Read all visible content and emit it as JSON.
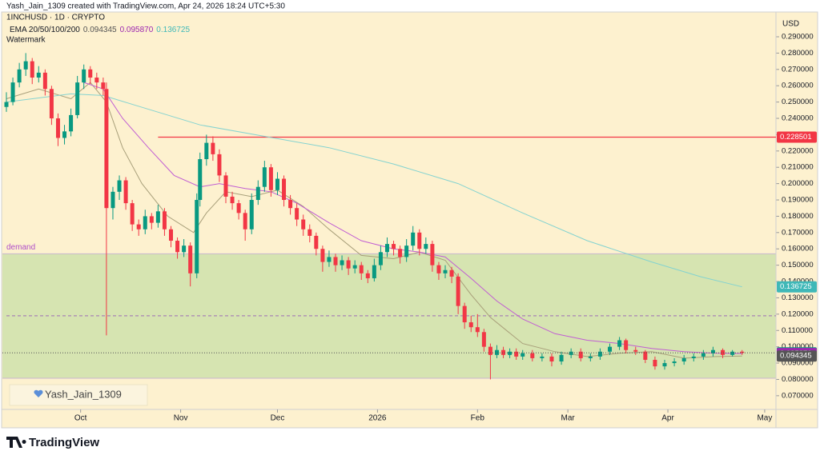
{
  "chart_data": {
    "type": "candlestick",
    "header": "Yash_Jain_1309 created with TradingView.com, Apr 24, 2026 18:24 UTC+5:30",
    "symbol": "1INCHUSD · 1D · CRYPTO",
    "watermark_title": "Watermark",
    "watermark_text": "Yash_Jain_1309",
    "brand": "TradingView",
    "currency": "USD",
    "up_color": "#089981",
    "down_color": "#f23645",
    "ylim": [
      0.0616,
      0.3047
    ],
    "yticks": [
      {
        "value": 0.07,
        "label": "0.070000"
      },
      {
        "value": 0.08,
        "label": "0.080000"
      },
      {
        "value": 0.09,
        "label": "0.090000"
      },
      {
        "value": 0.1,
        "label": "0.100000"
      },
      {
        "value": 0.11,
        "label": "0.110000"
      },
      {
        "value": 0.12,
        "label": "0.120000"
      },
      {
        "value": 0.13,
        "label": "0.130000"
      },
      {
        "value": 0.14,
        "label": "0.140000"
      },
      {
        "value": 0.15,
        "label": "0.150000"
      },
      {
        "value": 0.16,
        "label": "0.160000"
      },
      {
        "value": 0.17,
        "label": "0.170000"
      },
      {
        "value": 0.18,
        "label": "0.180000"
      },
      {
        "value": 0.19,
        "label": "0.190000"
      },
      {
        "value": 0.2,
        "label": "0.200000"
      },
      {
        "value": 0.21,
        "label": "0.210000"
      },
      {
        "value": 0.22,
        "label": "0.220000"
      },
      {
        "value": 0.23,
        "label": "0.230000"
      },
      {
        "value": 0.24,
        "label": "0.240000"
      },
      {
        "value": 0.25,
        "label": "0.250000"
      },
      {
        "value": 0.26,
        "label": "0.260000"
      },
      {
        "value": 0.27,
        "label": "0.270000"
      },
      {
        "value": 0.28,
        "label": "0.280000"
      },
      {
        "value": 0.29,
        "label": "0.290000"
      }
    ],
    "xlim": [
      0,
      237.5
    ],
    "xticks": [
      {
        "value": 23,
        "label": "Oct"
      },
      {
        "value": 54,
        "label": "Nov"
      },
      {
        "value": 84,
        "label": "Dec"
      },
      {
        "value": 115,
        "label": "2026"
      },
      {
        "value": 146,
        "label": "Feb"
      },
      {
        "value": 174,
        "label": "Mar"
      },
      {
        "value": 205,
        "label": "Apr"
      },
      {
        "value": 235,
        "label": "May"
      }
    ],
    "candles": [
      {
        "x": 0,
        "open": 0.247,
        "high": 0.256,
        "low": 0.244,
        "close": 0.25
      },
      {
        "x": 2,
        "open": 0.25,
        "high": 0.265,
        "low": 0.248,
        "close": 0.262
      },
      {
        "x": 4,
        "open": 0.262,
        "high": 0.274,
        "low": 0.259,
        "close": 0.27
      },
      {
        "x": 6,
        "open": 0.27,
        "high": 0.28,
        "low": 0.266,
        "close": 0.275
      },
      {
        "x": 8,
        "open": 0.275,
        "high": 0.277,
        "low": 0.261,
        "close": 0.265
      },
      {
        "x": 10,
        "open": 0.265,
        "high": 0.272,
        "low": 0.262,
        "close": 0.268
      },
      {
        "x": 12,
        "open": 0.268,
        "high": 0.27,
        "low": 0.254,
        "close": 0.258
      },
      {
        "x": 14,
        "open": 0.258,
        "high": 0.26,
        "low": 0.236,
        "close": 0.24
      },
      {
        "x": 16,
        "open": 0.24,
        "high": 0.243,
        "low": 0.223,
        "close": 0.228
      },
      {
        "x": 18,
        "open": 0.228,
        "high": 0.236,
        "low": 0.224,
        "close": 0.232
      },
      {
        "x": 20,
        "open": 0.232,
        "high": 0.246,
        "low": 0.229,
        "close": 0.242
      },
      {
        "x": 22,
        "open": 0.242,
        "high": 0.266,
        "low": 0.24,
        "close": 0.262
      },
      {
        "x": 24,
        "open": 0.262,
        "high": 0.273,
        "low": 0.258,
        "close": 0.27
      },
      {
        "x": 26,
        "open": 0.27,
        "high": 0.272,
        "low": 0.261,
        "close": 0.265
      },
      {
        "x": 28,
        "open": 0.265,
        "high": 0.268,
        "low": 0.258,
        "close": 0.262
      },
      {
        "x": 30,
        "open": 0.262,
        "high": 0.265,
        "low": 0.254,
        "close": 0.258
      },
      {
        "x": 31,
        "open": 0.258,
        "high": 0.262,
        "low": 0.107,
        "close": 0.185
      },
      {
        "x": 33,
        "open": 0.185,
        "high": 0.198,
        "low": 0.178,
        "close": 0.195
      },
      {
        "x": 35,
        "open": 0.195,
        "high": 0.205,
        "low": 0.19,
        "close": 0.202
      },
      {
        "x": 37,
        "open": 0.202,
        "high": 0.204,
        "low": 0.184,
        "close": 0.188
      },
      {
        "x": 39,
        "open": 0.188,
        "high": 0.19,
        "low": 0.171,
        "close": 0.175
      },
      {
        "x": 41,
        "open": 0.175,
        "high": 0.178,
        "low": 0.168,
        "close": 0.172
      },
      {
        "x": 43,
        "open": 0.172,
        "high": 0.184,
        "low": 0.169,
        "close": 0.18
      },
      {
        "x": 45,
        "open": 0.18,
        "high": 0.182,
        "low": 0.172,
        "close": 0.176
      },
      {
        "x": 47,
        "open": 0.176,
        "high": 0.187,
        "low": 0.173,
        "close": 0.183
      },
      {
        "x": 49,
        "open": 0.183,
        "high": 0.185,
        "low": 0.168,
        "close": 0.172
      },
      {
        "x": 51,
        "open": 0.172,
        "high": 0.174,
        "low": 0.161,
        "close": 0.165
      },
      {
        "x": 53,
        "open": 0.165,
        "high": 0.167,
        "low": 0.154,
        "close": 0.158
      },
      {
        "x": 55,
        "open": 0.158,
        "high": 0.166,
        "low": 0.155,
        "close": 0.162
      },
      {
        "x": 57,
        "open": 0.162,
        "high": 0.164,
        "low": 0.137,
        "close": 0.145
      },
      {
        "x": 59,
        "open": 0.145,
        "high": 0.194,
        "low": 0.142,
        "close": 0.19
      },
      {
        "x": 60,
        "open": 0.19,
        "high": 0.219,
        "low": 0.186,
        "close": 0.215
      },
      {
        "x": 62,
        "open": 0.215,
        "high": 0.23,
        "low": 0.211,
        "close": 0.225
      },
      {
        "x": 64,
        "open": 0.225,
        "high": 0.229,
        "low": 0.214,
        "close": 0.218
      },
      {
        "x": 66,
        "open": 0.218,
        "high": 0.221,
        "low": 0.201,
        "close": 0.205
      },
      {
        "x": 68,
        "open": 0.205,
        "high": 0.207,
        "low": 0.188,
        "close": 0.192
      },
      {
        "x": 70,
        "open": 0.192,
        "high": 0.195,
        "low": 0.184,
        "close": 0.188
      },
      {
        "x": 72,
        "open": 0.188,
        "high": 0.19,
        "low": 0.178,
        "close": 0.182
      },
      {
        "x": 74,
        "open": 0.182,
        "high": 0.184,
        "low": 0.165,
        "close": 0.172
      },
      {
        "x": 76,
        "open": 0.172,
        "high": 0.194,
        "low": 0.169,
        "close": 0.19
      },
      {
        "x": 78,
        "open": 0.19,
        "high": 0.202,
        "low": 0.187,
        "close": 0.198
      },
      {
        "x": 80,
        "open": 0.198,
        "high": 0.214,
        "low": 0.195,
        "close": 0.21
      },
      {
        "x": 82,
        "open": 0.21,
        "high": 0.212,
        "low": 0.192,
        "close": 0.196
      },
      {
        "x": 84,
        "open": 0.196,
        "high": 0.207,
        "low": 0.193,
        "close": 0.203
      },
      {
        "x": 86,
        "open": 0.203,
        "high": 0.205,
        "low": 0.186,
        "close": 0.19
      },
      {
        "x": 88,
        "open": 0.19,
        "high": 0.193,
        "low": 0.181,
        "close": 0.185
      },
      {
        "x": 90,
        "open": 0.185,
        "high": 0.188,
        "low": 0.174,
        "close": 0.178
      },
      {
        "x": 92,
        "open": 0.178,
        "high": 0.181,
        "low": 0.168,
        "close": 0.172
      },
      {
        "x": 94,
        "open": 0.172,
        "high": 0.175,
        "low": 0.164,
        "close": 0.168
      },
      {
        "x": 96,
        "open": 0.168,
        "high": 0.17,
        "low": 0.156,
        "close": 0.16
      },
      {
        "x": 98,
        "open": 0.16,
        "high": 0.162,
        "low": 0.146,
        "close": 0.152
      },
      {
        "x": 100,
        "open": 0.152,
        "high": 0.159,
        "low": 0.149,
        "close": 0.155
      },
      {
        "x": 102,
        "open": 0.155,
        "high": 0.157,
        "low": 0.146,
        "close": 0.15
      },
      {
        "x": 104,
        "open": 0.15,
        "high": 0.156,
        "low": 0.147,
        "close": 0.153
      },
      {
        "x": 106,
        "open": 0.153,
        "high": 0.155,
        "low": 0.144,
        "close": 0.148
      },
      {
        "x": 108,
        "open": 0.148,
        "high": 0.153,
        "low": 0.145,
        "close": 0.15
      },
      {
        "x": 110,
        "open": 0.15,
        "high": 0.152,
        "low": 0.141,
        "close": 0.145
      },
      {
        "x": 112,
        "open": 0.145,
        "high": 0.147,
        "low": 0.139,
        "close": 0.142
      },
      {
        "x": 114,
        "open": 0.142,
        "high": 0.154,
        "low": 0.14,
        "close": 0.15
      },
      {
        "x": 116,
        "open": 0.15,
        "high": 0.162,
        "low": 0.147,
        "close": 0.158
      },
      {
        "x": 118,
        "open": 0.158,
        "high": 0.167,
        "low": 0.155,
        "close": 0.163
      },
      {
        "x": 120,
        "open": 0.163,
        "high": 0.165,
        "low": 0.156,
        "close": 0.16
      },
      {
        "x": 122,
        "open": 0.16,
        "high": 0.162,
        "low": 0.151,
        "close": 0.155
      },
      {
        "x": 124,
        "open": 0.155,
        "high": 0.166,
        "low": 0.152,
        "close": 0.162
      },
      {
        "x": 126,
        "open": 0.162,
        "high": 0.174,
        "low": 0.159,
        "close": 0.17
      },
      {
        "x": 128,
        "open": 0.17,
        "high": 0.172,
        "low": 0.156,
        "close": 0.16
      },
      {
        "x": 130,
        "open": 0.16,
        "high": 0.167,
        "low": 0.157,
        "close": 0.163
      },
      {
        "x": 132,
        "open": 0.163,
        "high": 0.165,
        "low": 0.146,
        "close": 0.15
      },
      {
        "x": 134,
        "open": 0.15,
        "high": 0.152,
        "low": 0.141,
        "close": 0.145
      },
      {
        "x": 136,
        "open": 0.145,
        "high": 0.15,
        "low": 0.142,
        "close": 0.147
      },
      {
        "x": 138,
        "open": 0.147,
        "high": 0.149,
        "low": 0.139,
        "close": 0.143
      },
      {
        "x": 140,
        "open": 0.143,
        "high": 0.145,
        "low": 0.12,
        "close": 0.125
      },
      {
        "x": 142,
        "open": 0.125,
        "high": 0.127,
        "low": 0.111,
        "close": 0.115
      },
      {
        "x": 144,
        "open": 0.115,
        "high": 0.119,
        "low": 0.109,
        "close": 0.112
      },
      {
        "x": 146,
        "open": 0.112,
        "high": 0.12,
        "low": 0.106,
        "close": 0.109
      },
      {
        "x": 148,
        "open": 0.109,
        "high": 0.111,
        "low": 0.097,
        "close": 0.1
      },
      {
        "x": 150,
        "open": 0.1,
        "high": 0.102,
        "low": 0.08,
        "close": 0.095
      },
      {
        "x": 152,
        "open": 0.095,
        "high": 0.101,
        "low": 0.093,
        "close": 0.098
      },
      {
        "x": 154,
        "open": 0.098,
        "high": 0.1,
        "low": 0.093,
        "close": 0.095
      },
      {
        "x": 156,
        "open": 0.095,
        "high": 0.099,
        "low": 0.093,
        "close": 0.097
      },
      {
        "x": 158,
        "open": 0.097,
        "high": 0.099,
        "low": 0.092,
        "close": 0.094
      },
      {
        "x": 160,
        "open": 0.094,
        "high": 0.098,
        "low": 0.092,
        "close": 0.096
      },
      {
        "x": 163,
        "open": 0.096,
        "high": 0.098,
        "low": 0.091,
        "close": 0.093
      },
      {
        "x": 166,
        "open": 0.093,
        "high": 0.096,
        "low": 0.091,
        "close": 0.094
      },
      {
        "x": 169,
        "open": 0.094,
        "high": 0.096,
        "low": 0.088,
        "close": 0.091
      },
      {
        "x": 172,
        "open": 0.091,
        "high": 0.097,
        "low": 0.089,
        "close": 0.095
      },
      {
        "x": 175,
        "open": 0.095,
        "high": 0.099,
        "low": 0.093,
        "close": 0.097
      },
      {
        "x": 178,
        "open": 0.097,
        "high": 0.099,
        "low": 0.091,
        "close": 0.093
      },
      {
        "x": 181,
        "open": 0.093,
        "high": 0.096,
        "low": 0.091,
        "close": 0.094
      },
      {
        "x": 184,
        "open": 0.094,
        "high": 0.099,
        "low": 0.092,
        "close": 0.097
      },
      {
        "x": 187,
        "open": 0.097,
        "high": 0.102,
        "low": 0.095,
        "close": 0.1
      },
      {
        "x": 190,
        "open": 0.1,
        "high": 0.106,
        "low": 0.098,
        "close": 0.104
      },
      {
        "x": 192,
        "open": 0.104,
        "high": 0.105,
        "low": 0.096,
        "close": 0.098
      },
      {
        "x": 195,
        "open": 0.098,
        "high": 0.1,
        "low": 0.095,
        "close": 0.097
      },
      {
        "x": 198,
        "open": 0.097,
        "high": 0.098,
        "low": 0.09,
        "close": 0.092
      },
      {
        "x": 201,
        "open": 0.092,
        "high": 0.094,
        "low": 0.086,
        "close": 0.088
      },
      {
        "x": 204,
        "open": 0.088,
        "high": 0.092,
        "low": 0.086,
        "close": 0.09
      },
      {
        "x": 207,
        "open": 0.09,
        "high": 0.093,
        "low": 0.088,
        "close": 0.091
      },
      {
        "x": 210,
        "open": 0.091,
        "high": 0.095,
        "low": 0.089,
        "close": 0.093
      },
      {
        "x": 213,
        "open": 0.093,
        "high": 0.096,
        "low": 0.091,
        "close": 0.094
      },
      {
        "x": 216,
        "open": 0.094,
        "high": 0.098,
        "low": 0.092,
        "close": 0.096
      },
      {
        "x": 219,
        "open": 0.096,
        "high": 0.1,
        "low": 0.094,
        "close": 0.098
      },
      {
        "x": 222,
        "open": 0.098,
        "high": 0.099,
        "low": 0.093,
        "close": 0.095
      },
      {
        "x": 225,
        "open": 0.095,
        "high": 0.098,
        "low": 0.094,
        "close": 0.097
      },
      {
        "x": 228,
        "open": 0.097,
        "high": 0.098,
        "low": 0.095,
        "close": 0.096259
      }
    ],
    "ema": {
      "label": "EMA 20/50/100/200",
      "lines": [
        {
          "color": "#a89f7a",
          "label_color": "#555555",
          "x": [
            0,
            10,
            20,
            26,
            31,
            36,
            42,
            50,
            58,
            62,
            68,
            76,
            84,
            92,
            100,
            110,
            120,
            128,
            136,
            144,
            150,
            160,
            170,
            180,
            190,
            200,
            210,
            220,
            228
          ],
          "values": [
            0.252,
            0.258,
            0.252,
            0.262,
            0.25,
            0.222,
            0.2,
            0.18,
            0.17,
            0.182,
            0.195,
            0.192,
            0.196,
            0.186,
            0.172,
            0.156,
            0.154,
            0.158,
            0.153,
            0.132,
            0.118,
            0.102,
            0.097,
            0.094,
            0.096,
            0.097,
            0.093,
            0.094,
            0.094345
          ],
          "last": {
            "value": 0.094345,
            "label": "0.094345"
          }
        },
        {
          "color": "#c15ed3",
          "label_color": "#9c27b0",
          "x": [
            24,
            30,
            36,
            44,
            52,
            60,
            66,
            74,
            82,
            90,
            100,
            110,
            120,
            128,
            136,
            144,
            152,
            160,
            170,
            180,
            190,
            200,
            210,
            220,
            228
          ],
          "values": [
            0.262,
            0.258,
            0.24,
            0.222,
            0.205,
            0.198,
            0.2,
            0.197,
            0.195,
            0.188,
            0.176,
            0.165,
            0.16,
            0.158,
            0.155,
            0.142,
            0.128,
            0.117,
            0.108,
            0.104,
            0.102,
            0.099,
            0.097,
            0.096,
            0.09587
          ],
          "last": {
            "value": 0.09587,
            "label": "0.095870"
          }
        },
        {
          "color": "#84d3d0",
          "label_color": "#3fb8b8",
          "x": [
            0,
            20,
            30,
            40,
            60,
            80,
            100,
            120,
            140,
            160,
            180,
            200,
            215,
            228
          ],
          "values": [
            0.25,
            0.255,
            0.254,
            0.248,
            0.236,
            0.229,
            0.222,
            0.212,
            0.2,
            0.182,
            0.165,
            0.152,
            0.143,
            0.136725
          ],
          "last": {
            "value": 0.136725,
            "label": "0.136725"
          }
        }
      ]
    },
    "levels": [
      {
        "value": 0.228501,
        "color": "#f23645",
        "x_start": 47,
        "style": "solid",
        "label": "0.228501"
      },
      {
        "value": 0.119,
        "color": "#a883b4",
        "x_start": 0,
        "style": "dashed"
      }
    ],
    "zone": {
      "label": "demand",
      "low": 0.0807,
      "high": 0.157,
      "color": "#cfe2ab",
      "label_color": "#b04fc9"
    }
  }
}
